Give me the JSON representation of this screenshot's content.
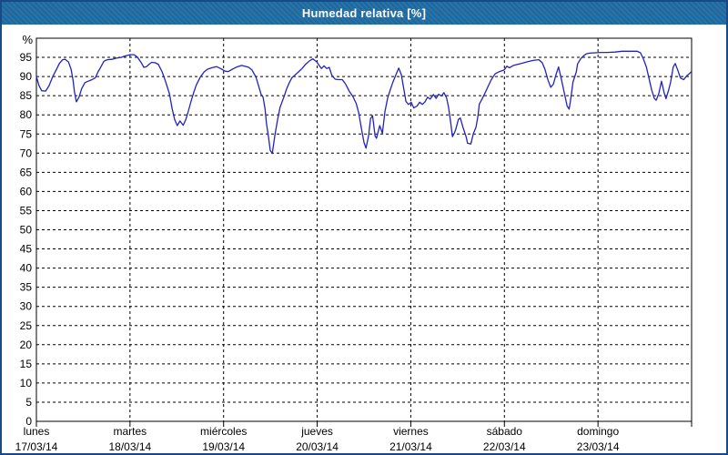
{
  "window": {
    "title": "Humedad relativa [%]"
  },
  "colors": {
    "title_bar": "#1e6ca3",
    "title_text": "#ffffff",
    "frame": "#1a4a85",
    "plot_border": "#000000",
    "grid": "#000000",
    "line": "#2222c0",
    "label_text": "#000000",
    "background": "#ffffff"
  },
  "chart_data": {
    "type": "line",
    "title": "Humedad relativa [%]",
    "xlabel": "",
    "ylabel": "%",
    "ylim": [
      0,
      100
    ],
    "grid": true,
    "grid_style": "dashed",
    "legend_position": "none",
    "yticks": [
      0,
      5,
      10,
      15,
      20,
      25,
      30,
      35,
      40,
      45,
      50,
      55,
      60,
      65,
      70,
      75,
      80,
      85,
      90,
      95
    ],
    "x_days": [
      {
        "name": "lunes",
        "date": "17/03/14"
      },
      {
        "name": "martes",
        "date": "18/03/14"
      },
      {
        "name": "miércoles",
        "date": "19/03/14"
      },
      {
        "name": "jueves",
        "date": "20/03/14"
      },
      {
        "name": "viernes",
        "date": "21/03/14"
      },
      {
        "name": "sábado",
        "date": "22/03/14"
      },
      {
        "name": "domingo",
        "date": "23/03/14"
      }
    ],
    "series": [
      {
        "name": "Humedad relativa",
        "unit": "%",
        "color": "#2222c0",
        "points": [
          [
            0.0,
            90.0
          ],
          [
            0.004,
            87.6
          ],
          [
            0.008,
            86.3
          ],
          [
            0.014,
            86.2
          ],
          [
            0.019,
            87.5
          ],
          [
            0.025,
            90.0
          ],
          [
            0.031,
            92.0
          ],
          [
            0.035,
            93.4
          ],
          [
            0.04,
            94.4
          ],
          [
            0.044,
            94.5
          ],
          [
            0.049,
            93.8
          ],
          [
            0.053,
            91.8
          ],
          [
            0.056,
            89.0
          ],
          [
            0.058,
            86.0
          ],
          [
            0.061,
            83.4
          ],
          [
            0.065,
            84.6
          ],
          [
            0.069,
            86.8
          ],
          [
            0.074,
            88.4
          ],
          [
            0.079,
            88.8
          ],
          [
            0.085,
            89.2
          ],
          [
            0.09,
            89.7
          ],
          [
            0.094,
            91.2
          ],
          [
            0.099,
            92.7
          ],
          [
            0.103,
            94.0
          ],
          [
            0.108,
            94.4
          ],
          [
            0.115,
            94.5
          ],
          [
            0.122,
            94.8
          ],
          [
            0.129,
            95.0
          ],
          [
            0.136,
            95.4
          ],
          [
            0.143,
            95.7
          ],
          [
            0.149,
            95.7
          ],
          [
            0.154,
            95.1
          ],
          [
            0.16,
            93.6
          ],
          [
            0.164,
            92.4
          ],
          [
            0.168,
            92.6
          ],
          [
            0.172,
            93.2
          ],
          [
            0.176,
            93.7
          ],
          [
            0.181,
            93.6
          ],
          [
            0.186,
            93.2
          ],
          [
            0.192,
            91.2
          ],
          [
            0.197,
            88.8
          ],
          [
            0.203,
            85.5
          ],
          [
            0.207,
            81.8
          ],
          [
            0.211,
            78.8
          ],
          [
            0.215,
            77.2
          ],
          [
            0.219,
            78.4
          ],
          [
            0.224,
            77.3
          ],
          [
            0.228,
            78.8
          ],
          [
            0.232,
            81.0
          ],
          [
            0.236,
            83.5
          ],
          [
            0.24,
            85.8
          ],
          [
            0.244,
            87.8
          ],
          [
            0.25,
            89.8
          ],
          [
            0.256,
            91.2
          ],
          [
            0.261,
            91.9
          ],
          [
            0.268,
            92.3
          ],
          [
            0.275,
            92.6
          ],
          [
            0.282,
            92.0
          ],
          [
            0.288,
            91.4
          ],
          [
            0.293,
            91.3
          ],
          [
            0.299,
            91.9
          ],
          [
            0.306,
            92.5
          ],
          [
            0.313,
            92.9
          ],
          [
            0.318,
            92.7
          ],
          [
            0.324,
            92.4
          ],
          [
            0.329,
            91.7
          ],
          [
            0.335,
            89.9
          ],
          [
            0.339,
            87.6
          ],
          [
            0.343,
            85.3
          ],
          [
            0.346,
            84.6
          ],
          [
            0.349,
            81.5
          ],
          [
            0.351,
            78.0
          ],
          [
            0.354,
            74.5
          ],
          [
            0.357,
            70.7
          ],
          [
            0.36,
            69.9
          ],
          [
            0.364,
            74.7
          ],
          [
            0.368,
            78.7
          ],
          [
            0.372,
            82.0
          ],
          [
            0.378,
            84.8
          ],
          [
            0.382,
            86.8
          ],
          [
            0.386,
            88.4
          ],
          [
            0.39,
            89.7
          ],
          [
            0.394,
            90.3
          ],
          [
            0.4,
            91.2
          ],
          [
            0.406,
            92.2
          ],
          [
            0.411,
            93.2
          ],
          [
            0.417,
            94.1
          ],
          [
            0.422,
            94.6
          ],
          [
            0.428,
            93.8
          ],
          [
            0.432,
            92.8
          ],
          [
            0.435,
            92.1
          ],
          [
            0.439,
            92.8
          ],
          [
            0.443,
            92.1
          ],
          [
            0.447,
            92.4
          ],
          [
            0.451,
            90.3
          ],
          [
            0.456,
            89.3
          ],
          [
            0.461,
            89.2
          ],
          [
            0.467,
            89.2
          ],
          [
            0.472,
            88.0
          ],
          [
            0.478,
            86.0
          ],
          [
            0.483,
            84.8
          ],
          [
            0.488,
            83.0
          ],
          [
            0.492,
            80.5
          ],
          [
            0.496,
            76.5
          ],
          [
            0.5,
            72.8
          ],
          [
            0.503,
            71.3
          ],
          [
            0.507,
            74.5
          ],
          [
            0.51,
            79.0
          ],
          [
            0.513,
            79.8
          ],
          [
            0.517,
            74.5
          ],
          [
            0.519,
            73.9
          ],
          [
            0.524,
            77.2
          ],
          [
            0.528,
            75.2
          ],
          [
            0.532,
            80.8
          ],
          [
            0.536,
            84.3
          ],
          [
            0.54,
            86.5
          ],
          [
            0.544,
            88.5
          ],
          [
            0.549,
            90.6
          ],
          [
            0.553,
            92.2
          ],
          [
            0.557,
            90.5
          ],
          [
            0.56,
            87.5
          ],
          [
            0.564,
            83.5
          ],
          [
            0.568,
            82.7
          ],
          [
            0.572,
            83.3
          ],
          [
            0.576,
            81.8
          ],
          [
            0.581,
            82.3
          ],
          [
            0.585,
            83.3
          ],
          [
            0.589,
            82.7
          ],
          [
            0.593,
            83.4
          ],
          [
            0.597,
            84.6
          ],
          [
            0.601,
            84.1
          ],
          [
            0.606,
            85.3
          ],
          [
            0.61,
            84.3
          ],
          [
            0.614,
            85.4
          ],
          [
            0.618,
            84.9
          ],
          [
            0.622,
            85.8
          ],
          [
            0.626,
            84.5
          ],
          [
            0.629,
            82.0
          ],
          [
            0.632,
            78.5
          ],
          [
            0.635,
            74.3
          ],
          [
            0.638,
            75.3
          ],
          [
            0.64,
            76.2
          ],
          [
            0.644,
            78.8
          ],
          [
            0.647,
            79.2
          ],
          [
            0.651,
            76.8
          ],
          [
            0.656,
            74.2
          ],
          [
            0.658,
            72.6
          ],
          [
            0.663,
            72.4
          ],
          [
            0.667,
            75.1
          ],
          [
            0.671,
            76.8
          ],
          [
            0.674,
            79.8
          ],
          [
            0.676,
            82.8
          ],
          [
            0.681,
            84.4
          ],
          [
            0.685,
            85.8
          ],
          [
            0.689,
            87.3
          ],
          [
            0.694,
            89.1
          ],
          [
            0.7,
            90.7
          ],
          [
            0.707,
            91.3
          ],
          [
            0.714,
            91.7
          ],
          [
            0.718,
            92.7
          ],
          [
            0.722,
            92.3
          ],
          [
            0.728,
            92.9
          ],
          [
            0.735,
            93.2
          ],
          [
            0.742,
            93.5
          ],
          [
            0.75,
            93.9
          ],
          [
            0.758,
            94.2
          ],
          [
            0.767,
            94.4
          ],
          [
            0.772,
            93.6
          ],
          [
            0.776,
            92.0
          ],
          [
            0.781,
            89.0
          ],
          [
            0.785,
            87.2
          ],
          [
            0.789,
            88.0
          ],
          [
            0.793,
            90.5
          ],
          [
            0.797,
            92.5
          ],
          [
            0.801,
            89.5
          ],
          [
            0.806,
            85.5
          ],
          [
            0.81,
            82.3
          ],
          [
            0.813,
            81.5
          ],
          [
            0.815,
            83.5
          ],
          [
            0.819,
            88.6
          ],
          [
            0.824,
            91.2
          ],
          [
            0.826,
            93.3
          ],
          [
            0.831,
            94.7
          ],
          [
            0.835,
            95.4
          ],
          [
            0.839,
            95.9
          ],
          [
            0.844,
            96.1
          ],
          [
            0.853,
            96.2
          ],
          [
            0.861,
            96.3
          ],
          [
            0.872,
            96.3
          ],
          [
            0.883,
            96.4
          ],
          [
            0.894,
            96.6
          ],
          [
            0.906,
            96.6
          ],
          [
            0.917,
            96.6
          ],
          [
            0.922,
            96.2
          ],
          [
            0.926,
            94.8
          ],
          [
            0.931,
            92.5
          ],
          [
            0.935,
            89.5
          ],
          [
            0.939,
            86.5
          ],
          [
            0.943,
            84.3
          ],
          [
            0.946,
            83.8
          ],
          [
            0.95,
            85.6
          ],
          [
            0.954,
            88.8
          ],
          [
            0.958,
            85.8
          ],
          [
            0.961,
            84.2
          ],
          [
            0.965,
            86.5
          ],
          [
            0.968,
            88.6
          ],
          [
            0.972,
            92.5
          ],
          [
            0.975,
            93.4
          ],
          [
            0.979,
            91.6
          ],
          [
            0.983,
            89.6
          ],
          [
            0.988,
            89.2
          ],
          [
            0.992,
            90.1
          ],
          [
            0.996,
            90.7
          ],
          [
            1.0,
            91.3
          ]
        ]
      }
    ]
  }
}
